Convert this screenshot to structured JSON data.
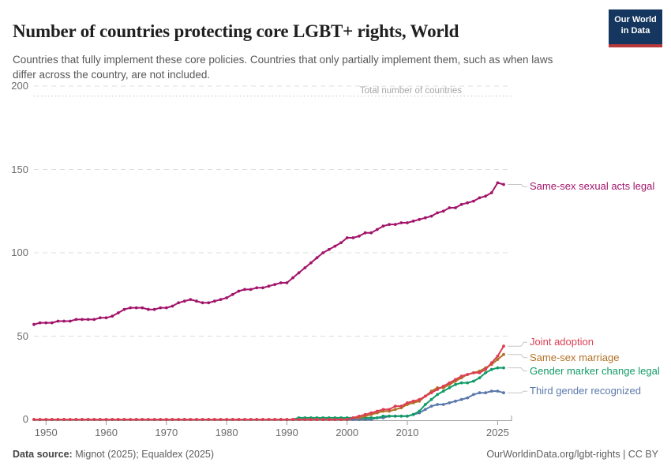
{
  "header": {
    "title": "Number of countries protecting core LGBT+ rights, World",
    "subtitle": "Countries that fully implement these core policies. Countries that only partially implement them, such as when laws differ across the country, are not included.",
    "logo": {
      "line1": "Our World",
      "line2": "in Data",
      "bg_color": "#15365e",
      "bar_color": "#b8383a"
    }
  },
  "footer": {
    "source_label": "Data source:",
    "source_text": " Mignot (2025); Equaldex (2025)",
    "right_text": "OurWorldinData.org/lgbt-rights | CC BY"
  },
  "chart_data": {
    "type": "line",
    "title": "Number of countries protecting core LGBT+ rights, World",
    "xlabel": "",
    "ylabel": "",
    "x_start_year": 1948,
    "x_end_year": 2026,
    "ylim": [
      0,
      200
    ],
    "y_ticks": [
      0,
      50,
      100,
      150,
      200
    ],
    "x_ticks": [
      1950,
      1960,
      1970,
      1980,
      1990,
      2000,
      2010,
      2025
    ],
    "grid": "dashed horizontal gridlines",
    "legend_position": "right edge direct labels",
    "annotation": {
      "label": "Total number of countries",
      "value": 194,
      "color": "#a6a6a6"
    },
    "series": [
      {
        "name": "Same-sex sexual acts legal",
        "color": "#a2146a",
        "label_dy": 3,
        "start_year": 1948,
        "values": [
          57,
          58,
          58,
          58,
          59,
          59,
          59,
          60,
          60,
          60,
          60,
          61,
          61,
          62,
          64,
          66,
          67,
          67,
          67,
          66,
          66,
          67,
          67,
          68,
          70,
          71,
          72,
          71,
          70,
          70,
          71,
          72,
          73,
          75,
          77,
          78,
          78,
          79,
          79,
          80,
          81,
          82,
          82,
          85,
          88,
          91,
          94,
          97,
          100,
          102,
          104,
          106,
          109,
          109,
          110,
          112,
          112,
          114,
          116,
          117,
          117,
          118,
          118,
          119,
          120,
          121,
          122,
          124,
          125,
          127,
          127,
          129,
          130,
          131,
          133,
          134,
          136,
          142,
          141
        ]
      },
      {
        "name": "Joint adoption",
        "color": "#dc3e53",
        "label_dy": -5,
        "start_year": 1948,
        "values": [
          0,
          0,
          0,
          0,
          0,
          0,
          0,
          0,
          0,
          0,
          0,
          0,
          0,
          0,
          0,
          0,
          0,
          0,
          0,
          0,
          0,
          0,
          0,
          0,
          0,
          0,
          0,
          0,
          0,
          0,
          0,
          0,
          0,
          0,
          0,
          0,
          0,
          0,
          0,
          0,
          0,
          0,
          0,
          0,
          0,
          0,
          0,
          0,
          0,
          0,
          0,
          0,
          0,
          1,
          2,
          3,
          4,
          5,
          6,
          6,
          8,
          8,
          10,
          11,
          12,
          14,
          16,
          18,
          20,
          22,
          24,
          26,
          27,
          28,
          28,
          30,
          34,
          38,
          44
        ]
      },
      {
        "name": "Same-sex marriage",
        "color": "#b27024",
        "label_dy": 4,
        "start_year": 1948,
        "values": [
          0,
          0,
          0,
          0,
          0,
          0,
          0,
          0,
          0,
          0,
          0,
          0,
          0,
          0,
          0,
          0,
          0,
          0,
          0,
          0,
          0,
          0,
          0,
          0,
          0,
          0,
          0,
          0,
          0,
          0,
          0,
          0,
          0,
          0,
          0,
          0,
          0,
          0,
          0,
          0,
          0,
          0,
          0,
          0,
          0,
          0,
          0,
          0,
          0,
          0,
          0,
          0,
          0,
          1,
          1,
          2,
          3,
          4,
          5,
          5,
          6,
          7,
          9,
          10,
          11,
          14,
          17,
          19,
          19,
          21,
          23,
          25,
          27,
          28,
          29,
          31,
          33,
          36,
          39
        ]
      },
      {
        "name": "Gender marker change legal",
        "color": "#119b67",
        "label_dy": 4,
        "start_year": 1948,
        "values": [
          0,
          0,
          0,
          0,
          0,
          0,
          0,
          0,
          0,
          0,
          0,
          0,
          0,
          0,
          0,
          0,
          0,
          0,
          0,
          0,
          0,
          0,
          0,
          0,
          0,
          0,
          0,
          0,
          0,
          0,
          0,
          0,
          0,
          0,
          0,
          0,
          0,
          0,
          0,
          0,
          0,
          0,
          0,
          0,
          1,
          1,
          1,
          1,
          1,
          1,
          1,
          1,
          1,
          1,
          1,
          1,
          1,
          1,
          2,
          2,
          2,
          2,
          2,
          3,
          5,
          9,
          12,
          15,
          17,
          19,
          21,
          22,
          22,
          23,
          25,
          28,
          30,
          31,
          31
        ]
      },
      {
        "name": "Third gender recognized",
        "color": "#5a78ab",
        "label_dy": -2,
        "start_year": 1948,
        "values": [
          0,
          0,
          0,
          0,
          0,
          0,
          0,
          0,
          0,
          0,
          0,
          0,
          0,
          0,
          0,
          0,
          0,
          0,
          0,
          0,
          0,
          0,
          0,
          0,
          0,
          0,
          0,
          0,
          0,
          0,
          0,
          0,
          0,
          0,
          0,
          0,
          0,
          0,
          0,
          0,
          0,
          0,
          0,
          0,
          0,
          0,
          0,
          0,
          0,
          0,
          0,
          0,
          0,
          0,
          0,
          0,
          0,
          1,
          1,
          2,
          2,
          2,
          2,
          3,
          4,
          6,
          8,
          9,
          9,
          10,
          11,
          12,
          13,
          15,
          16,
          16,
          17,
          17,
          16
        ]
      }
    ]
  }
}
